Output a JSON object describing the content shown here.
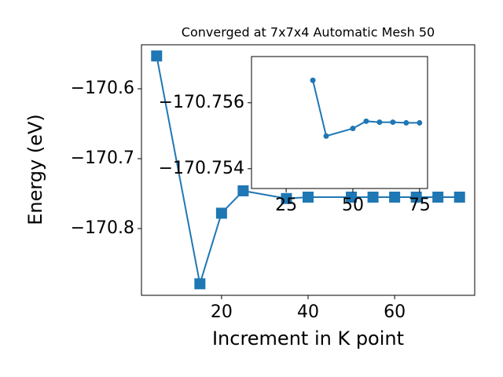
{
  "chart_data": [
    {
      "type": "line",
      "title": "Converged at 7x7x4 Automatic Mesh 50",
      "xlabel": "Increment in K point",
      "ylabel": "Energy (eV)",
      "x": [
        5,
        15,
        20,
        25,
        35,
        40,
        50,
        55,
        60,
        65,
        70,
        75
      ],
      "values": [
        -170.553,
        -170.879,
        -170.778,
        -170.746,
        -170.757,
        -170.755,
        -170.755,
        -170.755,
        -170.755,
        -170.755,
        -170.755,
        -170.755
      ],
      "color": "#1f77b4",
      "marker": "square",
      "xlim": [
        1.5,
        78.5
      ],
      "xticks": [
        20,
        40,
        60
      ],
      "ylim": [
        -170.8955,
        -170.537
      ],
      "yticks": [
        {
          "value": -170.8,
          "label": "−170.8"
        },
        {
          "value": -170.7,
          "label": "−170.7"
        },
        {
          "value": -170.6,
          "label": "−170.6"
        }
      ]
    },
    {
      "type": "line",
      "x": [
        35,
        40,
        50,
        55,
        60,
        65,
        70,
        75
      ],
      "values": [
        -170.75668,
        -170.75499,
        -170.75522,
        -170.75544,
        -170.75541,
        -170.75541,
        -170.75539,
        -170.75539
      ],
      "color": "#1f77b4",
      "marker": "circle",
      "xlim": [
        12,
        78
      ],
      "xticks": [
        25,
        50,
        75
      ],
      "ylim": [
        -170.7534,
        -170.7574
      ],
      "yticks": [
        {
          "value": -170.756,
          "label": "−170.756"
        },
        {
          "value": -170.754,
          "label": "−170.754"
        }
      ]
    }
  ]
}
